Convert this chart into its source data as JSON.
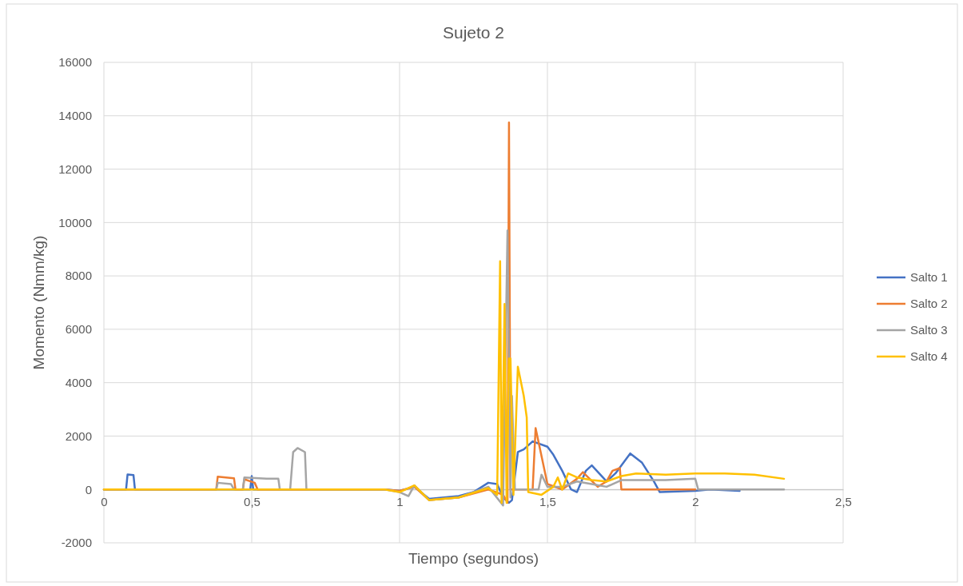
{
  "chart_data": {
    "type": "line",
    "title": "Sujeto 2",
    "xlabel": "Tiempo (segundos)",
    "ylabel": "Momento (Nmm/kg)",
    "xlim": [
      0,
      2.5
    ],
    "xticks": [
      0,
      {
        "value": 0.5,
        "label": "0,5"
      },
      1,
      {
        "value": 1.5,
        "label": "1,5"
      },
      2,
      {
        "value": 2.5,
        "label": "2,5"
      }
    ],
    "ylim": [
      -2000,
      16000
    ],
    "yticks": [
      -2000,
      0,
      2000,
      4000,
      6000,
      8000,
      10000,
      12000,
      14000,
      16000
    ],
    "grid": true,
    "legend": "right",
    "line_style": "solid",
    "marker": "none",
    "series": [
      {
        "name": "Salto 1",
        "color": "#4472c4",
        "x": [
          0,
          0.075,
          0.08,
          0.1,
          0.105,
          0.495,
          0.5,
          0.505,
          0.95,
          1.0,
          1.05,
          1.1,
          1.2,
          1.25,
          1.3,
          1.33,
          1.35,
          1.37,
          1.38,
          1.4,
          1.42,
          1.45,
          1.5,
          1.52,
          1.55,
          1.58,
          1.6,
          1.63,
          1.65,
          1.7,
          1.73,
          1.78,
          1.82,
          1.86,
          1.88,
          2.0,
          2.05,
          2.15
        ],
        "values": [
          0,
          0,
          560,
          540,
          0,
          0,
          500,
          0,
          0,
          -50,
          100,
          -350,
          -250,
          -100,
          250,
          200,
          -300,
          -500,
          -400,
          1400,
          1500,
          1800,
          1600,
          1300,
          700,
          0,
          -100,
          700,
          900,
          300,
          600,
          1350,
          1000,
          300,
          -100,
          -50,
          0,
          -50
        ]
      },
      {
        "name": "Salto 2",
        "color": "#ed7d31",
        "x": [
          0,
          0.38,
          0.385,
          0.44,
          0.445,
          0.47,
          0.475,
          0.51,
          0.52,
          0.95,
          1.0,
          1.05,
          1.1,
          1.2,
          1.3,
          1.35,
          1.365,
          1.37,
          1.375,
          1.45,
          1.46,
          1.5,
          1.55,
          1.6,
          1.62,
          1.67,
          1.7,
          1.72,
          1.745,
          1.75,
          2.0
        ],
        "values": [
          0,
          0,
          480,
          420,
          0,
          0,
          380,
          250,
          0,
          0,
          -50,
          100,
          -400,
          -300,
          0,
          -200,
          -500,
          13750,
          0,
          0,
          2300,
          200,
          0,
          400,
          650,
          100,
          300,
          700,
          800,
          0,
          0
        ]
      },
      {
        "name": "Salto 3",
        "color": "#a5a5a5",
        "x": [
          0,
          0.38,
          0.385,
          0.43,
          0.44,
          0.47,
          0.475,
          0.55,
          0.59,
          0.595,
          0.63,
          0.64,
          0.655,
          0.68,
          0.685,
          0.95,
          1.0,
          1.03,
          1.05,
          1.1,
          1.2,
          1.3,
          1.35,
          1.365,
          1.375,
          1.38,
          1.39,
          1.47,
          1.48,
          1.5,
          1.55,
          1.6,
          1.65,
          1.7,
          1.75,
          1.8,
          1.9,
          2.0,
          2.01,
          2.3
        ],
        "values": [
          0,
          0,
          250,
          200,
          0,
          0,
          450,
          400,
          400,
          0,
          0,
          1400,
          1550,
          1400,
          0,
          0,
          -100,
          -250,
          150,
          -400,
          -300,
          100,
          -600,
          9700,
          -300,
          3500,
          0,
          0,
          550,
          100,
          100,
          300,
          200,
          100,
          350,
          350,
          350,
          400,
          0,
          0
        ]
      },
      {
        "name": "Salto 4",
        "color": "#ffc000",
        "x": [
          0,
          0.95,
          1.0,
          1.05,
          1.1,
          1.2,
          1.3,
          1.33,
          1.34,
          1.345,
          1.355,
          1.362,
          1.37,
          1.375,
          1.385,
          1.4,
          1.42,
          1.43,
          1.435,
          1.48,
          1.52,
          1.535,
          1.55,
          1.57,
          1.6,
          1.65,
          1.7,
          1.75,
          1.8,
          1.9,
          2.0,
          2.1,
          2.2,
          2.3
        ],
        "values": [
          0,
          0,
          -100,
          150,
          -400,
          -300,
          50,
          -200,
          8550,
          -500,
          6950,
          -500,
          4900,
          4900,
          -200,
          4600,
          3500,
          2700,
          -100,
          -200,
          100,
          450,
          0,
          600,
          450,
          350,
          300,
          500,
          600,
          550,
          600,
          600,
          550,
          400
        ]
      }
    ]
  }
}
